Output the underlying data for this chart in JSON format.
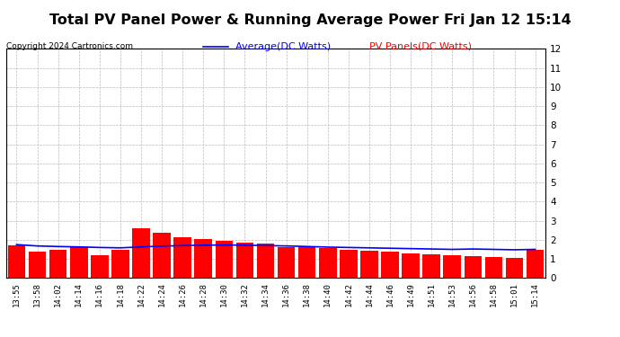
{
  "title": "Total PV Panel Power & Running Average Power Fri Jan 12 15:14",
  "copyright": "Copyright 2024 Cartronics.com",
  "legend_avg": "Average(DC Watts)",
  "legend_pv": "PV Panels(DC Watts)",
  "avg_color": "#0000ff",
  "pv_color": "#ff0000",
  "bg_color": "#ffffff",
  "grid_color": "#bbbbbb",
  "ylim": [
    0.0,
    12.0
  ],
  "yticks": [
    0.0,
    1.0,
    2.0,
    3.0,
    4.0,
    5.0,
    6.0,
    7.0,
    8.0,
    9.0,
    10.0,
    11.0,
    12.0
  ],
  "x_labels": [
    "13:55",
    "13:58",
    "14:02",
    "14:14",
    "14:16",
    "14:18",
    "14:22",
    "14:24",
    "14:26",
    "14:28",
    "14:30",
    "14:32",
    "14:34",
    "14:36",
    "14:38",
    "14:40",
    "14:42",
    "14:44",
    "14:46",
    "14:49",
    "14:51",
    "14:53",
    "14:56",
    "14:58",
    "15:01",
    "15:14"
  ],
  "pv_values": [
    1.7,
    1.4,
    1.5,
    1.6,
    1.2,
    1.5,
    2.6,
    2.35,
    2.15,
    2.05,
    1.95,
    1.85,
    1.8,
    1.6,
    1.65,
    1.55,
    1.5,
    1.45,
    1.4,
    1.3,
    1.25,
    1.2,
    1.15,
    1.1,
    1.05,
    1.5
  ],
  "avg_values": [
    1.75,
    1.68,
    1.65,
    1.63,
    1.6,
    1.58,
    1.63,
    1.67,
    1.7,
    1.72,
    1.73,
    1.72,
    1.7,
    1.68,
    1.65,
    1.62,
    1.6,
    1.58,
    1.56,
    1.54,
    1.52,
    1.5,
    1.52,
    1.5,
    1.48,
    1.5
  ],
  "title_fontsize": 11.5,
  "copyright_fontsize": 6.5,
  "legend_fontsize": 8,
  "tick_fontsize": 6.5,
  "ytick_fontsize": 7.5,
  "bar_width": 0.85
}
